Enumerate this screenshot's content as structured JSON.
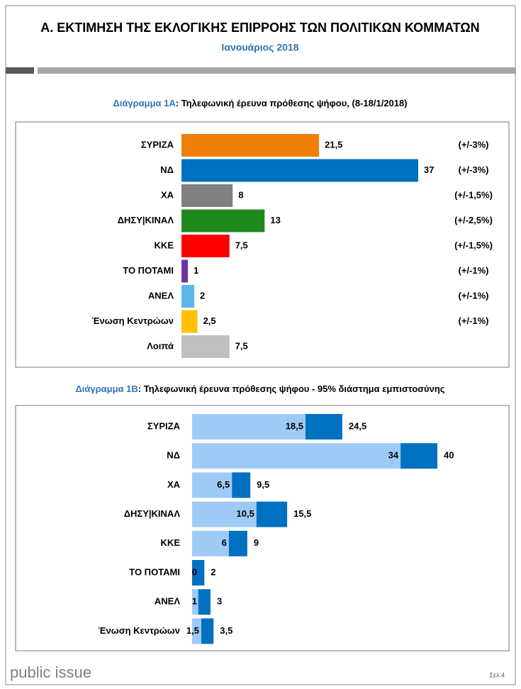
{
  "header": {
    "title": "Α. ΕΚΤΙΜΗΣΗ ΤΗΣ ΕΚΛΟΓΙΚΗΣ ΕΠΙΡΡΟΗΣ ΤΩΝ ΠΟΛΙΤΙΚΩΝ ΚΟΜΜΑΤΩΝ",
    "subtitle": "Ιανουάριος 2018"
  },
  "footer": {
    "brand": "public issue",
    "page": "Σελ.4"
  },
  "chart_data": [
    {
      "type": "bar",
      "title_label": "Διάγραμμα 1Α",
      "title": ": Τηλεφωνική έρευνα πρόθεσης ψήφου,  (8-18/1/2018)",
      "categories": [
        "ΣΥΡΙΖΑ",
        "ΝΔ",
        "ΧΑ",
        "ΔΗΣΥ|ΚΙΝΑΛ",
        "ΚΚΕ",
        "ΤΟ ΠΟΤΑΜΙ",
        "ΑΝΕΛ",
        "Ένωση Κεντρώων",
        "Λοιπά"
      ],
      "values": [
        21.5,
        37,
        8,
        13,
        7.5,
        1,
        2,
        2.5,
        7.5
      ],
      "value_labels": [
        "21,5",
        "37",
        "8",
        "13",
        "7,5",
        "1",
        "2",
        "2,5",
        "7,5"
      ],
      "colors": [
        "#f07f09",
        "#0070c0",
        "#808080",
        "#1e8a1e",
        "#ff0000",
        "#7030a0",
        "#5bb7e5",
        "#ffc000",
        "#bfbfbf"
      ],
      "margins": [
        "(+/-3%)",
        "(+/-3%)",
        "(+/-1,5%)",
        "(+/-2,5%)",
        "(+/-1,5%)",
        "(+/-1%)",
        "(+/-1%)",
        "(+/-1%)",
        null
      ],
      "xlim": [
        0,
        37
      ]
    },
    {
      "type": "range_bar",
      "title_label": "Διάγραμμα 1Β",
      "title": ": Τηλεφωνική έρευνα πρόθεσης ψήφου - 95% διάστημα εμπιστοσύνης",
      "categories": [
        "ΣΥΡΙΖΑ",
        "ΝΔ",
        "ΧΑ",
        "ΔΗΣΥ|ΚΙΝΑΛ",
        "ΚΚΕ",
        "ΤΟ ΠΟΤΑΜΙ",
        "ΑΝΕΛ",
        "Ένωση Κεντρώων"
      ],
      "lower": [
        18.5,
        34,
        6.5,
        10.5,
        6,
        0,
        1,
        1.5
      ],
      "lower_labels": [
        "18,5",
        "34",
        "6,5",
        "10,5",
        "6",
        "0",
        "1",
        "1,5"
      ],
      "upper": [
        24.5,
        40,
        9.5,
        15.5,
        9,
        2,
        3,
        3.5
      ],
      "upper_labels": [
        "24,5",
        "40",
        "9,5",
        "15,5",
        "9",
        "2",
        "3",
        "3,5"
      ],
      "lower_color": "#9ecbf6",
      "upper_color": "#0070c0",
      "xlim": [
        0,
        40
      ]
    }
  ]
}
